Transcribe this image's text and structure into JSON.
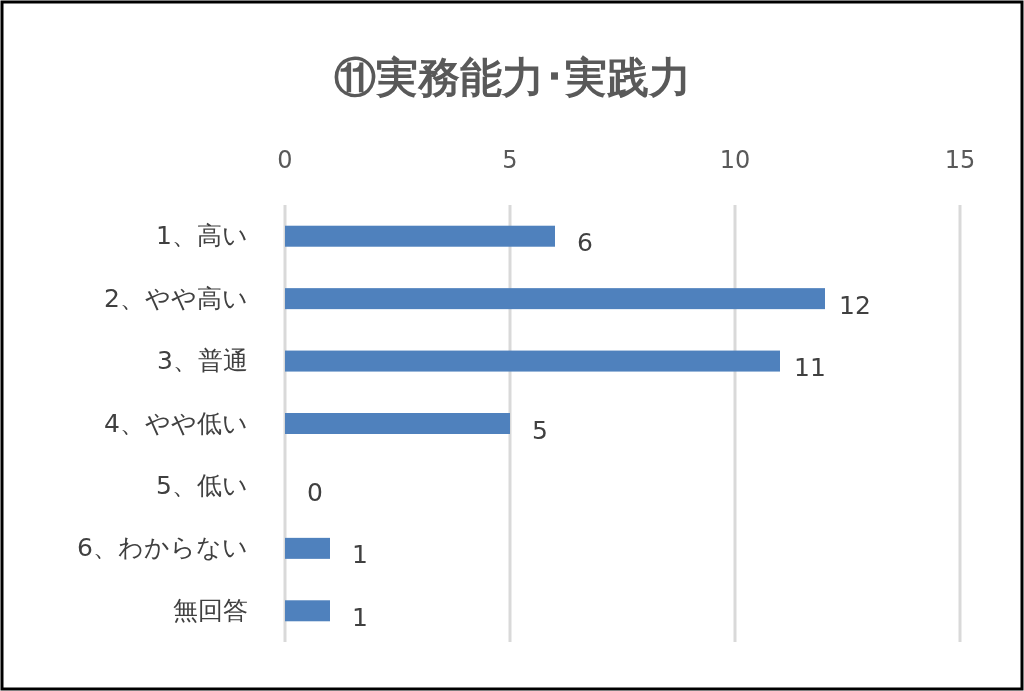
{
  "chart_data": {
    "type": "bar",
    "orientation": "horizontal",
    "title": "⑪実務能力･実践力",
    "categories": [
      "1、高い",
      "2、やや高い",
      "3、普通",
      "4、やや低い",
      "5、低い",
      "6、わからない",
      "無回答"
    ],
    "values": [
      6,
      12,
      11,
      5,
      0,
      1,
      1
    ],
    "color": "#4f81bd",
    "xlim": [
      0,
      15
    ],
    "xticks": [
      0,
      5,
      10,
      15
    ],
    "grid": "x",
    "data_labels": true
  }
}
